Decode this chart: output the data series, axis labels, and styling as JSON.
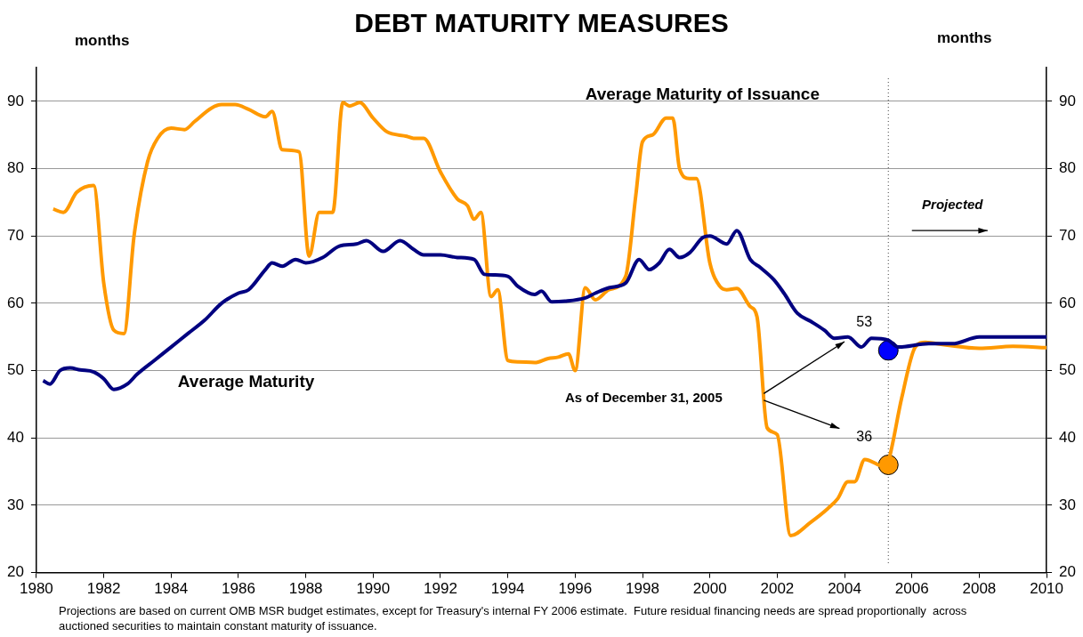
{
  "chart_data": {
    "type": "line",
    "title": "DEBT MATURITY MEASURES",
    "ylabel": "months",
    "y2label": "months",
    "xlim": [
      1980,
      2010
    ],
    "xticks": [
      1980,
      1982,
      1984,
      1986,
      1988,
      1990,
      1992,
      1994,
      1996,
      1998,
      2000,
      2002,
      2004,
      2006,
      2008,
      2010
    ],
    "ylim": [
      20,
      95
    ],
    "yticks": [
      20,
      30,
      40,
      50,
      60,
      70,
      80,
      90
    ],
    "y2lim": [
      20,
      95
    ],
    "y2ticks": [
      20,
      30,
      40,
      50,
      60,
      70,
      80,
      90
    ],
    "grid": "y",
    "legend": false,
    "series": [
      {
        "name": "Average Maturity",
        "type": "line",
        "color": "#000080",
        "x": [
          1980.2,
          1980.4,
          1980.7,
          1981.0,
          1981.3,
          1981.7,
          1982.0,
          1982.3,
          1982.7,
          1983.0,
          1983.5,
          1984.0,
          1984.5,
          1985.0,
          1985.5,
          1986.0,
          1986.3,
          1986.8,
          1987.0,
          1987.3,
          1987.7,
          1988.0,
          1988.5,
          1989.0,
          1989.5,
          1989.8,
          1990.3,
          1990.8,
          1991.2,
          1991.5,
          1992.0,
          1992.5,
          1993.0,
          1993.3,
          1993.6,
          1994.0,
          1994.3,
          1994.8,
          1995.0,
          1995.3,
          1995.7,
          1996.3,
          1996.6,
          1997.0,
          1997.5,
          1997.9,
          1998.2,
          1998.5,
          1998.8,
          1999.1,
          1999.4,
          1999.8,
          2000.0,
          2000.5,
          2000.8,
          2001.2,
          2001.5,
          2001.9,
          2002.2,
          2002.6,
          2003.0,
          2003.4,
          2003.7,
          2004.1,
          2004.5,
          2004.8,
          2005.3,
          2005.6,
          2006.5,
          2007.2,
          2008.0,
          2010.0
        ],
        "values": [
          48.5,
          48,
          50,
          50.4,
          50.1,
          49.8,
          48.8,
          47.2,
          48,
          49.5,
          51.5,
          53.5,
          55.5,
          57.5,
          60,
          61.5,
          62,
          65,
          66,
          65.5,
          66.5,
          66,
          66.8,
          68.5,
          68.8,
          69.3,
          67.7,
          69.3,
          68,
          67.2,
          67.2,
          66.8,
          66.5,
          64.3,
          64.2,
          64,
          62.5,
          61.3,
          61.8,
          60.2,
          60.3,
          60.8,
          61.5,
          62.3,
          63,
          66.5,
          65,
          66,
          68,
          66.8,
          67.5,
          69.8,
          70,
          68.8,
          70.8,
          66.5,
          65.3,
          63.5,
          61.5,
          58.5,
          57.3,
          56,
          54.8,
          55,
          53.5,
          54.8,
          54.5,
          53.5,
          54,
          54,
          55,
          55
        ]
      },
      {
        "name": "Average Maturity of Issuance",
        "type": "line",
        "color": "#ff9900",
        "x": [
          1980.5,
          1980.8,
          1981.2,
          1981.7,
          1982.0,
          1982.3,
          1982.6,
          1982.9,
          1983.3,
          1983.6,
          1984.0,
          1984.4,
          1984.7,
          1985.2,
          1985.5,
          1985.9,
          1986.3,
          1986.8,
          1987.0,
          1987.3,
          1987.8,
          1988.1,
          1988.4,
          1988.8,
          1989.1,
          1989.3,
          1989.6,
          1990.0,
          1990.4,
          1991.0,
          1991.2,
          1991.5,
          1992.0,
          1992.5,
          1992.8,
          1993.0,
          1993.2,
          1993.5,
          1993.7,
          1994.0,
          1994.3,
          1994.8,
          1995.2,
          1995.5,
          1995.8,
          1996.0,
          1996.3,
          1996.6,
          1997.0,
          1997.5,
          1997.8,
          1998.0,
          1998.3,
          1998.7,
          1998.9,
          1999.1,
          1999.4,
          1999.6,
          2000.0,
          2000.3,
          2000.5,
          2000.8,
          2001.2,
          2001.4,
          2001.7,
          2002.0,
          2002.4,
          2003.0,
          2003.5,
          2003.8,
          2004.1,
          2004.3,
          2004.6,
          2005.2,
          2005.3,
          2005.7,
          2006.1,
          2006.4,
          2007.0,
          2008.0,
          2009.0,
          2010.0
        ],
        "values": [
          74,
          73.5,
          76.5,
          77.5,
          63,
          56,
          55.5,
          70,
          81,
          84.5,
          86,
          85.8,
          87,
          89,
          89.5,
          89.5,
          88.8,
          87.7,
          88.5,
          82.8,
          82.5,
          67,
          73.5,
          73.5,
          89.8,
          89.3,
          89.8,
          87.5,
          85.5,
          84.8,
          84.5,
          84.5,
          79.5,
          75.5,
          74.5,
          72.5,
          73.5,
          61,
          62,
          51.5,
          51.3,
          51.2,
          51.8,
          52,
          52.5,
          50,
          62.3,
          60.5,
          62,
          64,
          76,
          84,
          85,
          87.5,
          87.5,
          80,
          78.5,
          78.5,
          66,
          62.5,
          62,
          62.2,
          59.5,
          58,
          41.5,
          40.5,
          25.5,
          27.5,
          29.5,
          31,
          33.5,
          33.5,
          36.8,
          35.7,
          36.5,
          46,
          53.5,
          54.2,
          53.8,
          53.3,
          53.6,
          53.4
        ]
      },
      {
        "type": "scatter",
        "marker": "circle",
        "color": "#0000ff",
        "x": [
          2005.3
        ],
        "values": [
          53
        ],
        "value_labels": [
          "53"
        ]
      },
      {
        "type": "scatter",
        "marker": "circle",
        "color": "#ff9900",
        "x": [
          2005.3
        ],
        "values": [
          36
        ],
        "value_labels": [
          "36"
        ]
      }
    ],
    "ref_lines": [
      {
        "axis": "x",
        "value": 2005.3,
        "color": "#404040",
        "line_style": "dotted"
      }
    ],
    "annotations": [
      "As of December 31, 2005",
      "Projected",
      "Projections are based on current OMB MSR budget estimates, except for Treasury's internal FY 2006 estimate.  Future residual financing needs are spread proportionally  across auctioned securities to maintain constant maturity of issuance."
    ]
  }
}
